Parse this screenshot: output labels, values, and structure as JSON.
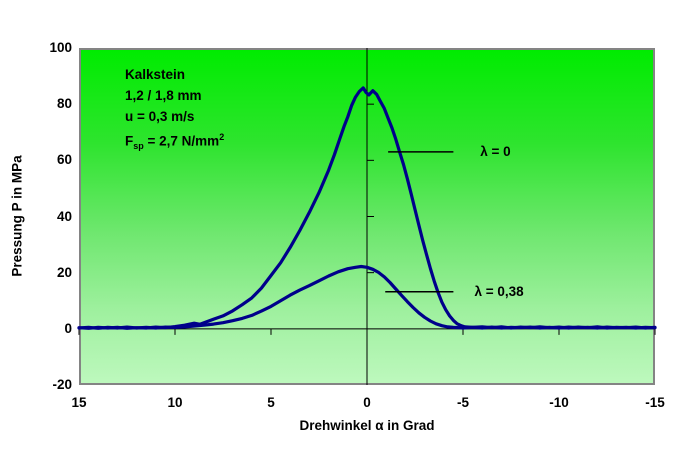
{
  "conditions": {
    "material": "Kalkstein",
    "grain_size": "1,2 / 1,8 mm",
    "velocity": "u = 0,3 m/s",
    "specific_force": {
      "base": "F",
      "sub": "sp",
      "mid": " = 2,7 N/mm",
      "sup": "2"
    }
  },
  "chart_data": {
    "type": "line",
    "xlabel": "Drehwinkel α in Grad",
    "ylabel": "Pressung P in MPa",
    "xlim": [
      15,
      -15
    ],
    "ylim": [
      -20,
      100
    ],
    "xticks": [
      15,
      10,
      5,
      0,
      -5,
      -10,
      -15
    ],
    "yticks": [
      100,
      80,
      60,
      40,
      20,
      0,
      -20
    ],
    "grid": false,
    "axis_cross": {
      "x": 0,
      "y": 0
    },
    "plot_background_top": "#00ec00",
    "plot_background_bottom": "#bdf8bd",
    "line_color": "#00008b",
    "series": [
      {
        "name": "λ = 0",
        "color": "#00008b",
        "points": [
          [
            15,
            0.4
          ],
          [
            14.5,
            0.2
          ],
          [
            14,
            0.5
          ],
          [
            13.5,
            0.3
          ],
          [
            13,
            0.5
          ],
          [
            12.5,
            0.2
          ],
          [
            12,
            0.4
          ],
          [
            11.5,
            0.3
          ],
          [
            11,
            0.6
          ],
          [
            10.5,
            0.4
          ],
          [
            10,
            0.8
          ],
          [
            9.5,
            1.3
          ],
          [
            9,
            2
          ],
          [
            8.7,
            1.6
          ],
          [
            8.4,
            2.4
          ],
          [
            8,
            3.4
          ],
          [
            7.5,
            4.6
          ],
          [
            7,
            6.4
          ],
          [
            6.5,
            8.6
          ],
          [
            6,
            11
          ],
          [
            5.5,
            14.5
          ],
          [
            5,
            19
          ],
          [
            4.5,
            23.5
          ],
          [
            4,
            29
          ],
          [
            3.5,
            35
          ],
          [
            3,
            41.5
          ],
          [
            2.5,
            48.5
          ],
          [
            2,
            56.5
          ],
          [
            1.7,
            62
          ],
          [
            1.4,
            68
          ],
          [
            1.2,
            72
          ],
          [
            1,
            75.5
          ],
          [
            0.8,
            79.5
          ],
          [
            0.6,
            82.5
          ],
          [
            0.4,
            84.5
          ],
          [
            0.2,
            85.8
          ],
          [
            0.05,
            84.2
          ],
          [
            -0.1,
            83.3
          ],
          [
            -0.3,
            84.8
          ],
          [
            -0.5,
            83.5
          ],
          [
            -0.7,
            81
          ],
          [
            -0.9,
            78.5
          ],
          [
            -1.1,
            75
          ],
          [
            -1.3,
            71.5
          ],
          [
            -1.5,
            67.5
          ],
          [
            -1.7,
            63
          ],
          [
            -1.9,
            58.5
          ],
          [
            -2.1,
            53.5
          ],
          [
            -2.3,
            48
          ],
          [
            -2.5,
            42.5
          ],
          [
            -2.7,
            37
          ],
          [
            -2.9,
            31.5
          ],
          [
            -3.1,
            26.5
          ],
          [
            -3.3,
            21.5
          ],
          [
            -3.5,
            17
          ],
          [
            -3.7,
            13
          ],
          [
            -3.9,
            9.5
          ],
          [
            -4.1,
            6.8
          ],
          [
            -4.3,
            4.6
          ],
          [
            -4.5,
            3
          ],
          [
            -4.7,
            1.8
          ],
          [
            -4.9,
            1.1
          ],
          [
            -5.1,
            0.7
          ],
          [
            -5.5,
            0.5
          ],
          [
            -6,
            0.7
          ],
          [
            -6.5,
            0.4
          ],
          [
            -7,
            0.7
          ],
          [
            -7.5,
            0.3
          ],
          [
            -8,
            0.6
          ],
          [
            -8.5,
            0.4
          ],
          [
            -9,
            0.7
          ],
          [
            -9.5,
            0.4
          ],
          [
            -10,
            0.6
          ],
          [
            -10.5,
            0.3
          ],
          [
            -11,
            0.6
          ],
          [
            -11.5,
            0.4
          ],
          [
            -12,
            0.7
          ],
          [
            -12.5,
            0.3
          ],
          [
            -13,
            0.5
          ],
          [
            -13.5,
            0.4
          ],
          [
            -14,
            0.6
          ],
          [
            -14.5,
            0.3
          ],
          [
            -15,
            0.5
          ]
        ]
      },
      {
        "name": "λ = 0,38",
        "color": "#00008b",
        "points": [
          [
            15,
            0.3
          ],
          [
            14.5,
            0.5
          ],
          [
            14,
            0.2
          ],
          [
            13.5,
            0.5
          ],
          [
            13,
            0.3
          ],
          [
            12.5,
            0.6
          ],
          [
            12,
            0.3
          ],
          [
            11.5,
            0.5
          ],
          [
            11,
            0.3
          ],
          [
            10.5,
            0.6
          ],
          [
            10,
            0.5
          ],
          [
            9.5,
            0.7
          ],
          [
            9,
            1
          ],
          [
            8.5,
            1.3
          ],
          [
            8,
            1.7
          ],
          [
            7.5,
            2.2
          ],
          [
            7,
            2.9
          ],
          [
            6.5,
            3.7
          ],
          [
            6,
            4.8
          ],
          [
            5.5,
            6.3
          ],
          [
            5,
            8
          ],
          [
            4.5,
            10
          ],
          [
            4,
            12
          ],
          [
            3.5,
            13.8
          ],
          [
            3,
            15.4
          ],
          [
            2.5,
            17.1
          ],
          [
            2,
            18.8
          ],
          [
            1.5,
            20.3
          ],
          [
            1,
            21.4
          ],
          [
            0.6,
            21.9
          ],
          [
            0.3,
            22.2
          ],
          [
            0,
            21.9
          ],
          [
            -0.3,
            21.2
          ],
          [
            -0.6,
            20.1
          ],
          [
            -0.9,
            18.5
          ],
          [
            -1.2,
            16.5
          ],
          [
            -1.5,
            14.2
          ],
          [
            -1.8,
            11.9
          ],
          [
            -2.1,
            9.7
          ],
          [
            -2.4,
            7.6
          ],
          [
            -2.7,
            5.7
          ],
          [
            -3,
            4.1
          ],
          [
            -3.3,
            2.8
          ],
          [
            -3.6,
            1.8
          ],
          [
            -3.9,
            1.1
          ],
          [
            -4.2,
            0.7
          ],
          [
            -4.5,
            0.5
          ],
          [
            -5,
            0.3
          ],
          [
            -5.5,
            0.5
          ],
          [
            -6,
            0.3
          ],
          [
            -6.5,
            0.6
          ],
          [
            -7,
            0.3
          ],
          [
            -7.5,
            0.5
          ],
          [
            -8,
            0.4
          ],
          [
            -8.5,
            0.6
          ],
          [
            -9,
            0.3
          ],
          [
            -9.5,
            0.5
          ],
          [
            -10,
            0.3
          ],
          [
            -10.5,
            0.6
          ],
          [
            -11,
            0.4
          ],
          [
            -11.5,
            0.5
          ],
          [
            -12,
            0.3
          ],
          [
            -12.5,
            0.6
          ],
          [
            -13,
            0.4
          ],
          [
            -13.5,
            0.5
          ],
          [
            -14,
            0.3
          ],
          [
            -14.5,
            0.5
          ],
          [
            -15,
            0.4
          ]
        ]
      }
    ],
    "annotations": [
      {
        "text": "λ = 0",
        "leader": {
          "y": 63,
          "x1": -1.1,
          "x2": -4.5
        },
        "text_x": -5.9
      },
      {
        "text": "λ = 0,38",
        "leader": {
          "y": 13.2,
          "x1": -0.95,
          "x2": -4.5
        },
        "text_x": -5.6
      }
    ]
  }
}
